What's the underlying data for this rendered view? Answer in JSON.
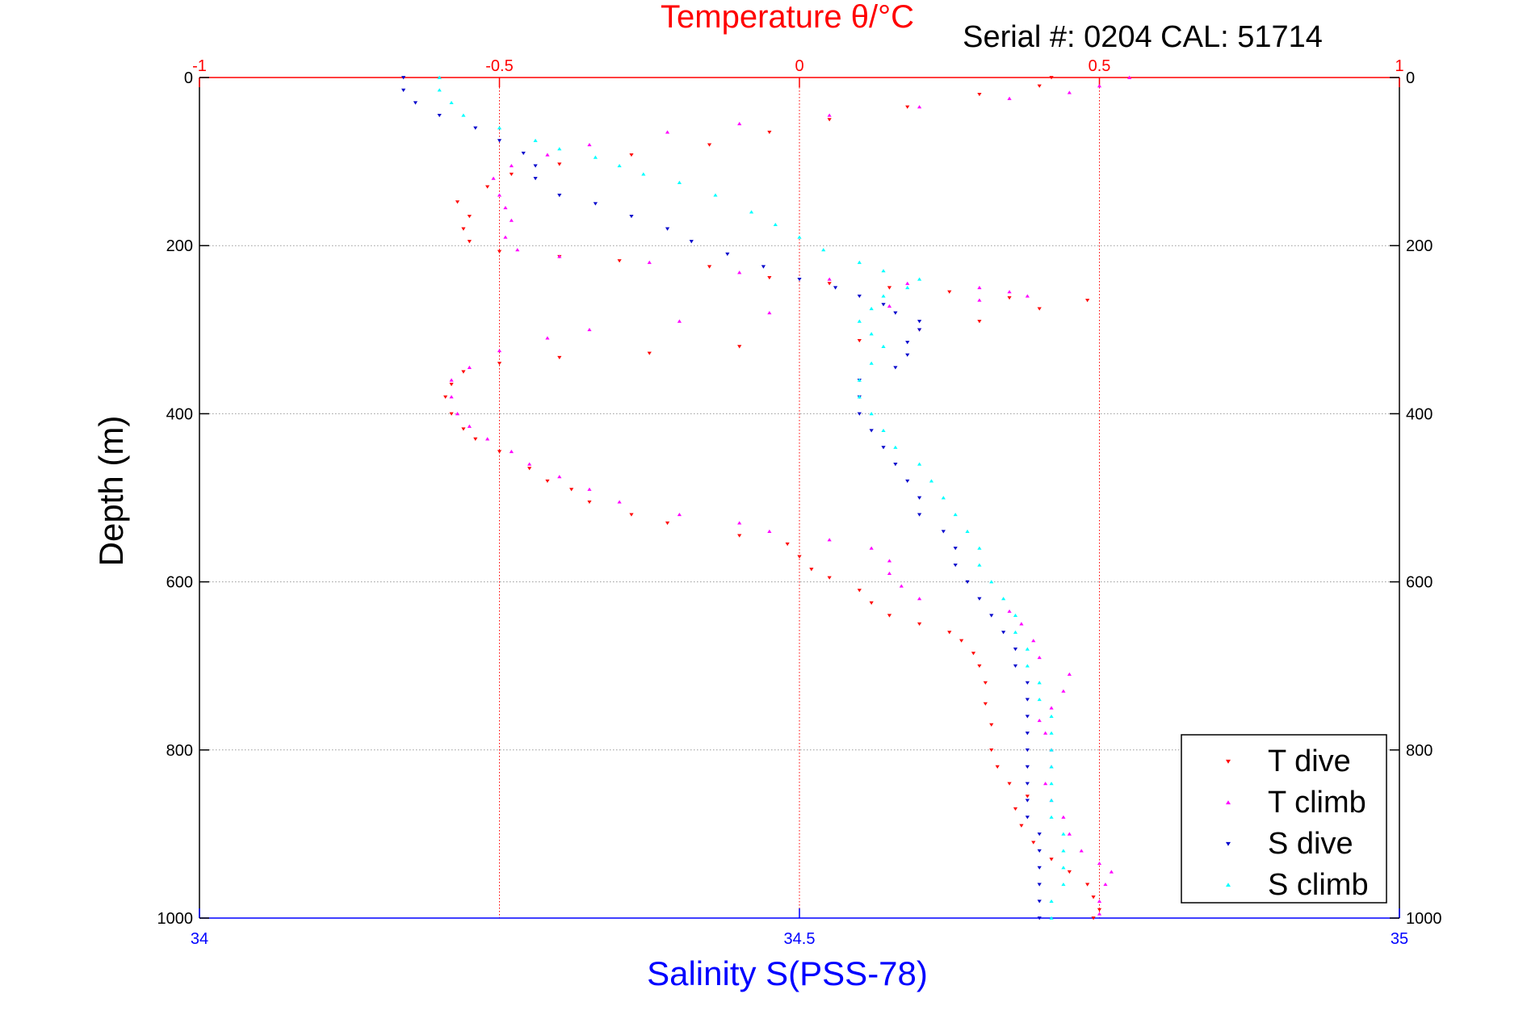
{
  "chart_data": {
    "type": "scatter",
    "title": "Temperature θ/°C",
    "subtitle": "Serial #: 0204   CAL: 51714",
    "xlabel": "Salinity S(PSS-78)",
    "ylabel": "Depth (m)",
    "x_bottom": {
      "label": "Salinity S(PSS-78)",
      "range": [
        34,
        35
      ],
      "ticks": [
        "34",
        "34.5",
        "35"
      ],
      "color": "#0000ff"
    },
    "x_top": {
      "label": "Temperature θ/°C",
      "range": [
        -1,
        1
      ],
      "ticks": [
        "-1",
        "-0.5",
        "0",
        "0.5",
        "1"
      ],
      "color": "#ff0000"
    },
    "y": {
      "label": "Depth (m)",
      "range": [
        0,
        1000
      ],
      "reversed": true,
      "ticks": [
        "0",
        "200",
        "400",
        "600",
        "800",
        "1000"
      ]
    },
    "grid": true,
    "legend_position": "bottom-right",
    "series": [
      {
        "name": "T dive",
        "axis": "temperature",
        "marker": "triangle-down",
        "color": "#ff0000",
        "points": [
          [
            0.42,
            0
          ],
          [
            0.4,
            10
          ],
          [
            0.3,
            20
          ],
          [
            0.18,
            35
          ],
          [
            0.05,
            50
          ],
          [
            -0.05,
            65
          ],
          [
            -0.15,
            80
          ],
          [
            -0.28,
            92
          ],
          [
            -0.4,
            103
          ],
          [
            -0.48,
            115
          ],
          [
            -0.52,
            130
          ],
          [
            -0.57,
            148
          ],
          [
            -0.55,
            165
          ],
          [
            -0.56,
            180
          ],
          [
            -0.55,
            195
          ],
          [
            -0.5,
            207
          ],
          [
            -0.4,
            213
          ],
          [
            -0.3,
            218
          ],
          [
            -0.15,
            225
          ],
          [
            -0.05,
            238
          ],
          [
            0.05,
            245
          ],
          [
            0.15,
            250
          ],
          [
            0.25,
            255
          ],
          [
            0.35,
            262
          ],
          [
            0.48,
            265
          ],
          [
            0.4,
            275
          ],
          [
            0.3,
            290
          ],
          [
            0.2,
            300
          ],
          [
            0.1,
            313
          ],
          [
            -0.1,
            320
          ],
          [
            -0.25,
            328
          ],
          [
            -0.4,
            333
          ],
          [
            -0.5,
            340
          ],
          [
            -0.56,
            350
          ],
          [
            -0.58,
            365
          ],
          [
            -0.59,
            380
          ],
          [
            -0.58,
            400
          ],
          [
            -0.56,
            418
          ],
          [
            -0.54,
            430
          ],
          [
            -0.5,
            445
          ],
          [
            -0.45,
            465
          ],
          [
            -0.42,
            480
          ],
          [
            -0.38,
            490
          ],
          [
            -0.35,
            505
          ],
          [
            -0.28,
            520
          ],
          [
            -0.22,
            530
          ],
          [
            -0.1,
            545
          ],
          [
            -0.02,
            555
          ],
          [
            0,
            570
          ],
          [
            0.02,
            585
          ],
          [
            0.05,
            595
          ],
          [
            0.1,
            610
          ],
          [
            0.12,
            625
          ],
          [
            0.15,
            640
          ],
          [
            0.2,
            650
          ],
          [
            0.25,
            660
          ],
          [
            0.27,
            670
          ],
          [
            0.29,
            685
          ],
          [
            0.3,
            700
          ],
          [
            0.31,
            720
          ],
          [
            0.31,
            745
          ],
          [
            0.32,
            770
          ],
          [
            0.32,
            800
          ],
          [
            0.33,
            820
          ],
          [
            0.35,
            840
          ],
          [
            0.38,
            855
          ],
          [
            0.36,
            870
          ],
          [
            0.37,
            890
          ],
          [
            0.39,
            910
          ],
          [
            0.42,
            930
          ],
          [
            0.45,
            945
          ],
          [
            0.48,
            960
          ],
          [
            0.49,
            975
          ],
          [
            0.5,
            990
          ],
          [
            0.49,
            1000
          ]
        ]
      },
      {
        "name": "T climb",
        "axis": "temperature",
        "marker": "triangle-up",
        "color": "#ff00ff",
        "points": [
          [
            0.55,
            0
          ],
          [
            0.5,
            10
          ],
          [
            0.45,
            18
          ],
          [
            0.35,
            25
          ],
          [
            0.2,
            35
          ],
          [
            0.05,
            45
          ],
          [
            -0.1,
            55
          ],
          [
            -0.22,
            65
          ],
          [
            -0.35,
            80
          ],
          [
            -0.42,
            92
          ],
          [
            -0.48,
            105
          ],
          [
            -0.51,
            120
          ],
          [
            -0.5,
            140
          ],
          [
            -0.49,
            155
          ],
          [
            -0.48,
            170
          ],
          [
            -0.49,
            190
          ],
          [
            -0.47,
            205
          ],
          [
            -0.4,
            213
          ],
          [
            -0.25,
            220
          ],
          [
            -0.1,
            232
          ],
          [
            0.05,
            240
          ],
          [
            0.18,
            245
          ],
          [
            0.3,
            250
          ],
          [
            0.35,
            255
          ],
          [
            0.38,
            260
          ],
          [
            0.3,
            265
          ],
          [
            0.15,
            272
          ],
          [
            -0.05,
            280
          ],
          [
            -0.2,
            290
          ],
          [
            -0.35,
            300
          ],
          [
            -0.42,
            310
          ],
          [
            -0.5,
            325
          ],
          [
            -0.55,
            345
          ],
          [
            -0.58,
            360
          ],
          [
            -0.58,
            380
          ],
          [
            -0.57,
            400
          ],
          [
            -0.55,
            415
          ],
          [
            -0.52,
            430
          ],
          [
            -0.48,
            445
          ],
          [
            -0.45,
            460
          ],
          [
            -0.4,
            475
          ],
          [
            -0.35,
            490
          ],
          [
            -0.3,
            505
          ],
          [
            -0.2,
            520
          ],
          [
            -0.1,
            530
          ],
          [
            -0.05,
            540
          ],
          [
            0.05,
            550
          ],
          [
            0.12,
            560
          ],
          [
            0.15,
            575
          ],
          [
            0.15,
            590
          ],
          [
            0.17,
            605
          ],
          [
            0.2,
            620
          ],
          [
            0.35,
            635
          ],
          [
            0.37,
            650
          ],
          [
            0.39,
            670
          ],
          [
            0.4,
            690
          ],
          [
            0.45,
            710
          ],
          [
            0.44,
            730
          ],
          [
            0.42,
            750
          ],
          [
            0.4,
            765
          ],
          [
            0.41,
            780
          ],
          [
            0.42,
            800
          ],
          [
            0.42,
            820
          ],
          [
            0.41,
            840
          ],
          [
            0.42,
            860
          ],
          [
            0.44,
            880
          ],
          [
            0.45,
            900
          ],
          [
            0.47,
            920
          ],
          [
            0.5,
            935
          ],
          [
            0.52,
            945
          ],
          [
            0.51,
            960
          ],
          [
            0.5,
            980
          ],
          [
            0.5,
            995
          ]
        ]
      },
      {
        "name": "S dive",
        "axis": "salinity",
        "marker": "triangle-down",
        "color": "#0000cc",
        "points": [
          [
            34.17,
            0
          ],
          [
            34.17,
            15
          ],
          [
            34.18,
            30
          ],
          [
            34.2,
            45
          ],
          [
            34.23,
            60
          ],
          [
            34.25,
            75
          ],
          [
            34.27,
            90
          ],
          [
            34.28,
            105
          ],
          [
            34.28,
            120
          ],
          [
            34.3,
            140
          ],
          [
            34.33,
            150
          ],
          [
            34.36,
            165
          ],
          [
            34.39,
            180
          ],
          [
            34.41,
            195
          ],
          [
            34.44,
            210
          ],
          [
            34.47,
            225
          ],
          [
            34.5,
            240
          ],
          [
            34.53,
            250
          ],
          [
            34.55,
            260
          ],
          [
            34.57,
            270
          ],
          [
            34.58,
            280
          ],
          [
            34.6,
            290
          ],
          [
            34.6,
            300
          ],
          [
            34.59,
            315
          ],
          [
            34.59,
            330
          ],
          [
            34.58,
            345
          ],
          [
            34.55,
            360
          ],
          [
            34.55,
            380
          ],
          [
            34.55,
            400
          ],
          [
            34.56,
            420
          ],
          [
            34.57,
            440
          ],
          [
            34.58,
            460
          ],
          [
            34.59,
            480
          ],
          [
            34.6,
            500
          ],
          [
            34.6,
            520
          ],
          [
            34.62,
            540
          ],
          [
            34.63,
            560
          ],
          [
            34.63,
            580
          ],
          [
            34.64,
            600
          ],
          [
            34.65,
            620
          ],
          [
            34.66,
            640
          ],
          [
            34.67,
            660
          ],
          [
            34.68,
            680
          ],
          [
            34.68,
            700
          ],
          [
            34.69,
            720
          ],
          [
            34.69,
            740
          ],
          [
            34.69,
            760
          ],
          [
            34.69,
            780
          ],
          [
            34.69,
            800
          ],
          [
            34.69,
            820
          ],
          [
            34.69,
            840
          ],
          [
            34.69,
            860
          ],
          [
            34.69,
            880
          ],
          [
            34.7,
            900
          ],
          [
            34.7,
            920
          ],
          [
            34.7,
            940
          ],
          [
            34.7,
            960
          ],
          [
            34.7,
            980
          ],
          [
            34.7,
            1000
          ]
        ]
      },
      {
        "name": "S climb",
        "axis": "salinity",
        "marker": "triangle-up",
        "color": "#00ffff",
        "points": [
          [
            34.2,
            0
          ],
          [
            34.2,
            15
          ],
          [
            34.21,
            30
          ],
          [
            34.22,
            45
          ],
          [
            34.25,
            60
          ],
          [
            34.28,
            75
          ],
          [
            34.3,
            85
          ],
          [
            34.33,
            95
          ],
          [
            34.35,
            105
          ],
          [
            34.37,
            115
          ],
          [
            34.4,
            125
          ],
          [
            34.43,
            140
          ],
          [
            34.46,
            160
          ],
          [
            34.48,
            175
          ],
          [
            34.5,
            190
          ],
          [
            34.52,
            205
          ],
          [
            34.55,
            220
          ],
          [
            34.57,
            230
          ],
          [
            34.6,
            240
          ],
          [
            34.59,
            250
          ],
          [
            34.57,
            260
          ],
          [
            34.56,
            275
          ],
          [
            34.55,
            290
          ],
          [
            34.56,
            305
          ],
          [
            34.57,
            320
          ],
          [
            34.56,
            340
          ],
          [
            34.55,
            360
          ],
          [
            34.55,
            380
          ],
          [
            34.56,
            400
          ],
          [
            34.57,
            420
          ],
          [
            34.58,
            440
          ],
          [
            34.6,
            460
          ],
          [
            34.61,
            480
          ],
          [
            34.62,
            500
          ],
          [
            34.63,
            520
          ],
          [
            34.64,
            540
          ],
          [
            34.65,
            560
          ],
          [
            34.65,
            580
          ],
          [
            34.66,
            600
          ],
          [
            34.67,
            620
          ],
          [
            34.68,
            640
          ],
          [
            34.68,
            660
          ],
          [
            34.69,
            680
          ],
          [
            34.69,
            700
          ],
          [
            34.7,
            720
          ],
          [
            34.7,
            740
          ],
          [
            34.71,
            760
          ],
          [
            34.71,
            780
          ],
          [
            34.71,
            800
          ],
          [
            34.71,
            820
          ],
          [
            34.71,
            840
          ],
          [
            34.71,
            860
          ],
          [
            34.71,
            880
          ],
          [
            34.72,
            900
          ],
          [
            34.72,
            920
          ],
          [
            34.72,
            940
          ],
          [
            34.72,
            960
          ],
          [
            34.71,
            980
          ],
          [
            34.71,
            1000
          ]
        ]
      }
    ]
  }
}
